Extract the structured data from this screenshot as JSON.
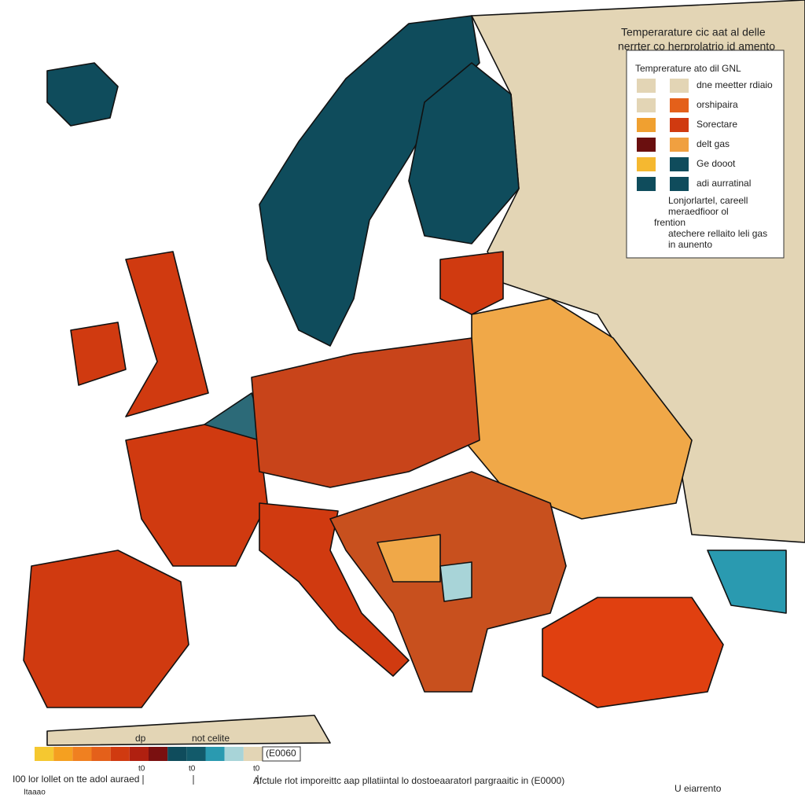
{
  "title": [
    "Temperarature cic aat al delle",
    "nerrter co herprolatrio id amento"
  ],
  "legend": {
    "title": "Temprerature ato dil GNL",
    "items": [
      {
        "left_color": "#e3d5b5",
        "right_color": "#e3d5b5",
        "label": "dne meetter rdiaio"
      },
      {
        "left_color": "#e3d5b5",
        "right_color": "#e4601a",
        "label": "orshipaira"
      },
      {
        "left_color": "#f0a030",
        "right_color": "#d03a10",
        "label": "Sorectare"
      },
      {
        "left_color": "#6a0f0f",
        "right_color": "#f0a040",
        "label": "delt gas"
      },
      {
        "left_color": "#f5b830",
        "right_color": "#0f4c5c",
        "label": "Ge dooot"
      },
      {
        "left_color": "#0f4c5c",
        "right_color": "#0f4c5c",
        "label": "adi aurratinal"
      }
    ],
    "notes": [
      "Lonjorlartel, careell",
      "meraedfioor ol",
      "frention",
      "atechere rellaito leli gas",
      "in aunento"
    ]
  },
  "colorbar": {
    "colors": [
      "#f5c830",
      "#f5a020",
      "#f08020",
      "#e4601a",
      "#d03a10",
      "#b02010",
      "#7a1010",
      "#0f4c5c",
      "#125a6a",
      "#2a9ab0",
      "#a8d4d8",
      "#e3d5b5"
    ],
    "labels": [
      "dp",
      "not celite",
      "(E0060"
    ],
    "ticks": [
      "t0",
      "t0",
      "t0"
    ]
  },
  "footer": {
    "left": "I00 lor lollet on tte adol auraed",
    "left_sub": "Itaaao",
    "center": "Afctule rlot imporeittc aap pllatiintal lo dostoeaaratorl pargraaitic in (E0000)",
    "right": "U eiarrento"
  }
}
